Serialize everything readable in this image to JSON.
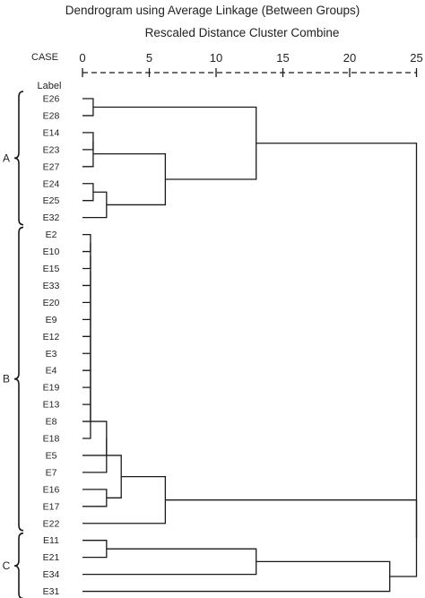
{
  "title": "Dendrogram using Average Linkage (Between Groups)",
  "subtitle": "Rescaled Distance Cluster Combine",
  "case_label": "CASE",
  "label_header": "Label",
  "axis_ticks": [
    "0",
    "5",
    "10",
    "15",
    "20",
    "25"
  ],
  "leaves": [
    "E26",
    "E28",
    "E14",
    "E23",
    "E27",
    "E24",
    "E25",
    "E32",
    "E2",
    "E10",
    "E15",
    "E33",
    "E20",
    "E9",
    "E12",
    "E3",
    "E4",
    "E19",
    "E13",
    "E8",
    "E18",
    "E5",
    "E7",
    "E16",
    "E17",
    "E22",
    "E11",
    "E21",
    "E34",
    "E31"
  ],
  "groups": [
    {
      "label": "A",
      "first_leaf": 0,
      "last_leaf": 7
    },
    {
      "label": "B",
      "first_leaf": 8,
      "last_leaf": 25
    },
    {
      "label": "C",
      "first_leaf": 26,
      "last_leaf": 29
    }
  ],
  "merges": [
    {
      "a": "E26",
      "b": "E28",
      "d": 0.8
    },
    {
      "a": "E14",
      "b": "E23",
      "d": 0.8
    },
    {
      "a": "m1",
      "b": "E27",
      "d": 0.8
    },
    {
      "a": "E24",
      "b": "E25",
      "d": 0.8
    },
    {
      "a": "m3",
      "b": "E32",
      "d": 1.8
    },
    {
      "a": "m2",
      "b": "m4",
      "d": 6.2
    },
    {
      "a": "m0",
      "b": "m5",
      "d": 13.0
    },
    {
      "a": "E2",
      "b": "E10",
      "d": 0.6
    },
    {
      "a": "m7",
      "b": "E15",
      "d": 0.6
    },
    {
      "a": "m8",
      "b": "E33",
      "d": 0.6
    },
    {
      "a": "m9",
      "b": "E20",
      "d": 0.6
    },
    {
      "a": "m10",
      "b": "E9",
      "d": 0.6
    },
    {
      "a": "m11",
      "b": "E12",
      "d": 0.6
    },
    {
      "a": "m12",
      "b": "E3",
      "d": 0.6
    },
    {
      "a": "m13",
      "b": "E4",
      "d": 0.6
    },
    {
      "a": "m14",
      "b": "E19",
      "d": 0.6
    },
    {
      "a": "m15",
      "b": "E13",
      "d": 0.6
    },
    {
      "a": "m16",
      "b": "E8",
      "d": 0.6
    },
    {
      "a": "m17",
      "b": "E18",
      "d": 0.6
    },
    {
      "a": "m18",
      "b": "E5",
      "d": 1.8
    },
    {
      "a": "m19",
      "b": "E7",
      "d": 1.8
    },
    {
      "a": "E16",
      "b": "E17",
      "d": 1.8
    },
    {
      "a": "m20",
      "b": "m21",
      "d": 2.9
    },
    {
      "a": "m22",
      "b": "E22",
      "d": 6.2
    },
    {
      "a": "E11",
      "b": "E21",
      "d": 1.8
    },
    {
      "a": "m24",
      "b": "E34",
      "d": 13.0
    },
    {
      "a": "m25",
      "b": "E31",
      "d": 23.0
    },
    {
      "a": "m23",
      "b": "m26",
      "d": 25.0
    },
    {
      "a": "m6",
      "b": "m27",
      "d": 25.0
    }
  ]
}
